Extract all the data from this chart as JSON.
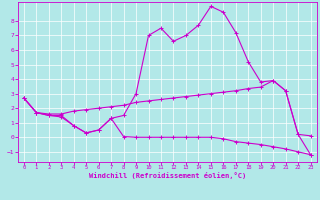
{
  "xlabel": "Windchill (Refroidissement éolien,°C)",
  "xlim": [
    -0.5,
    23.5
  ],
  "ylim": [
    -1.7,
    9.3
  ],
  "yticks": [
    -1,
    0,
    1,
    2,
    3,
    4,
    5,
    6,
    7,
    8
  ],
  "xticks": [
    0,
    1,
    2,
    3,
    4,
    5,
    6,
    7,
    8,
    9,
    10,
    11,
    12,
    13,
    14,
    15,
    16,
    17,
    18,
    19,
    20,
    21,
    22,
    23
  ],
  "bg_color": "#b2e8e8",
  "line_color": "#cc00cc",
  "grid_color": "#ffffff",
  "line1_x": [
    0,
    1,
    2,
    3,
    4,
    5,
    6,
    7,
    8,
    9,
    10,
    11,
    12,
    13,
    14,
    15,
    16,
    17,
    18,
    19,
    20,
    21,
    22,
    23
  ],
  "line1_y": [
    2.7,
    1.7,
    1.5,
    1.5,
    0.8,
    0.3,
    0.5,
    1.3,
    1.5,
    3.0,
    7.0,
    7.5,
    6.6,
    7.0,
    7.7,
    9.0,
    8.6,
    7.2,
    5.2,
    3.8,
    3.9,
    3.2,
    0.2,
    0.1
  ],
  "line2_x": [
    0,
    1,
    2,
    3,
    4,
    5,
    6,
    7,
    8,
    9,
    10,
    11,
    12,
    13,
    14,
    15,
    16,
    17,
    18,
    19,
    20,
    21,
    22,
    23
  ],
  "line2_y": [
    2.7,
    1.7,
    1.6,
    1.6,
    1.8,
    1.9,
    2.0,
    2.1,
    2.2,
    2.4,
    2.5,
    2.6,
    2.7,
    2.8,
    2.9,
    3.0,
    3.1,
    3.2,
    3.35,
    3.45,
    3.9,
    3.2,
    0.2,
    -1.2
  ],
  "line3_x": [
    0,
    1,
    2,
    3,
    4,
    5,
    6,
    7,
    8,
    9,
    10,
    11,
    12,
    13,
    14,
    15,
    16,
    17,
    18,
    19,
    20,
    21,
    22,
    23
  ],
  "line3_y": [
    2.7,
    1.7,
    1.5,
    1.4,
    0.8,
    0.3,
    0.5,
    1.3,
    0.05,
    0.0,
    0.0,
    0.0,
    0.0,
    0.0,
    0.0,
    0.0,
    -0.1,
    -0.3,
    -0.4,
    -0.5,
    -0.65,
    -0.8,
    -1.0,
    -1.2
  ]
}
